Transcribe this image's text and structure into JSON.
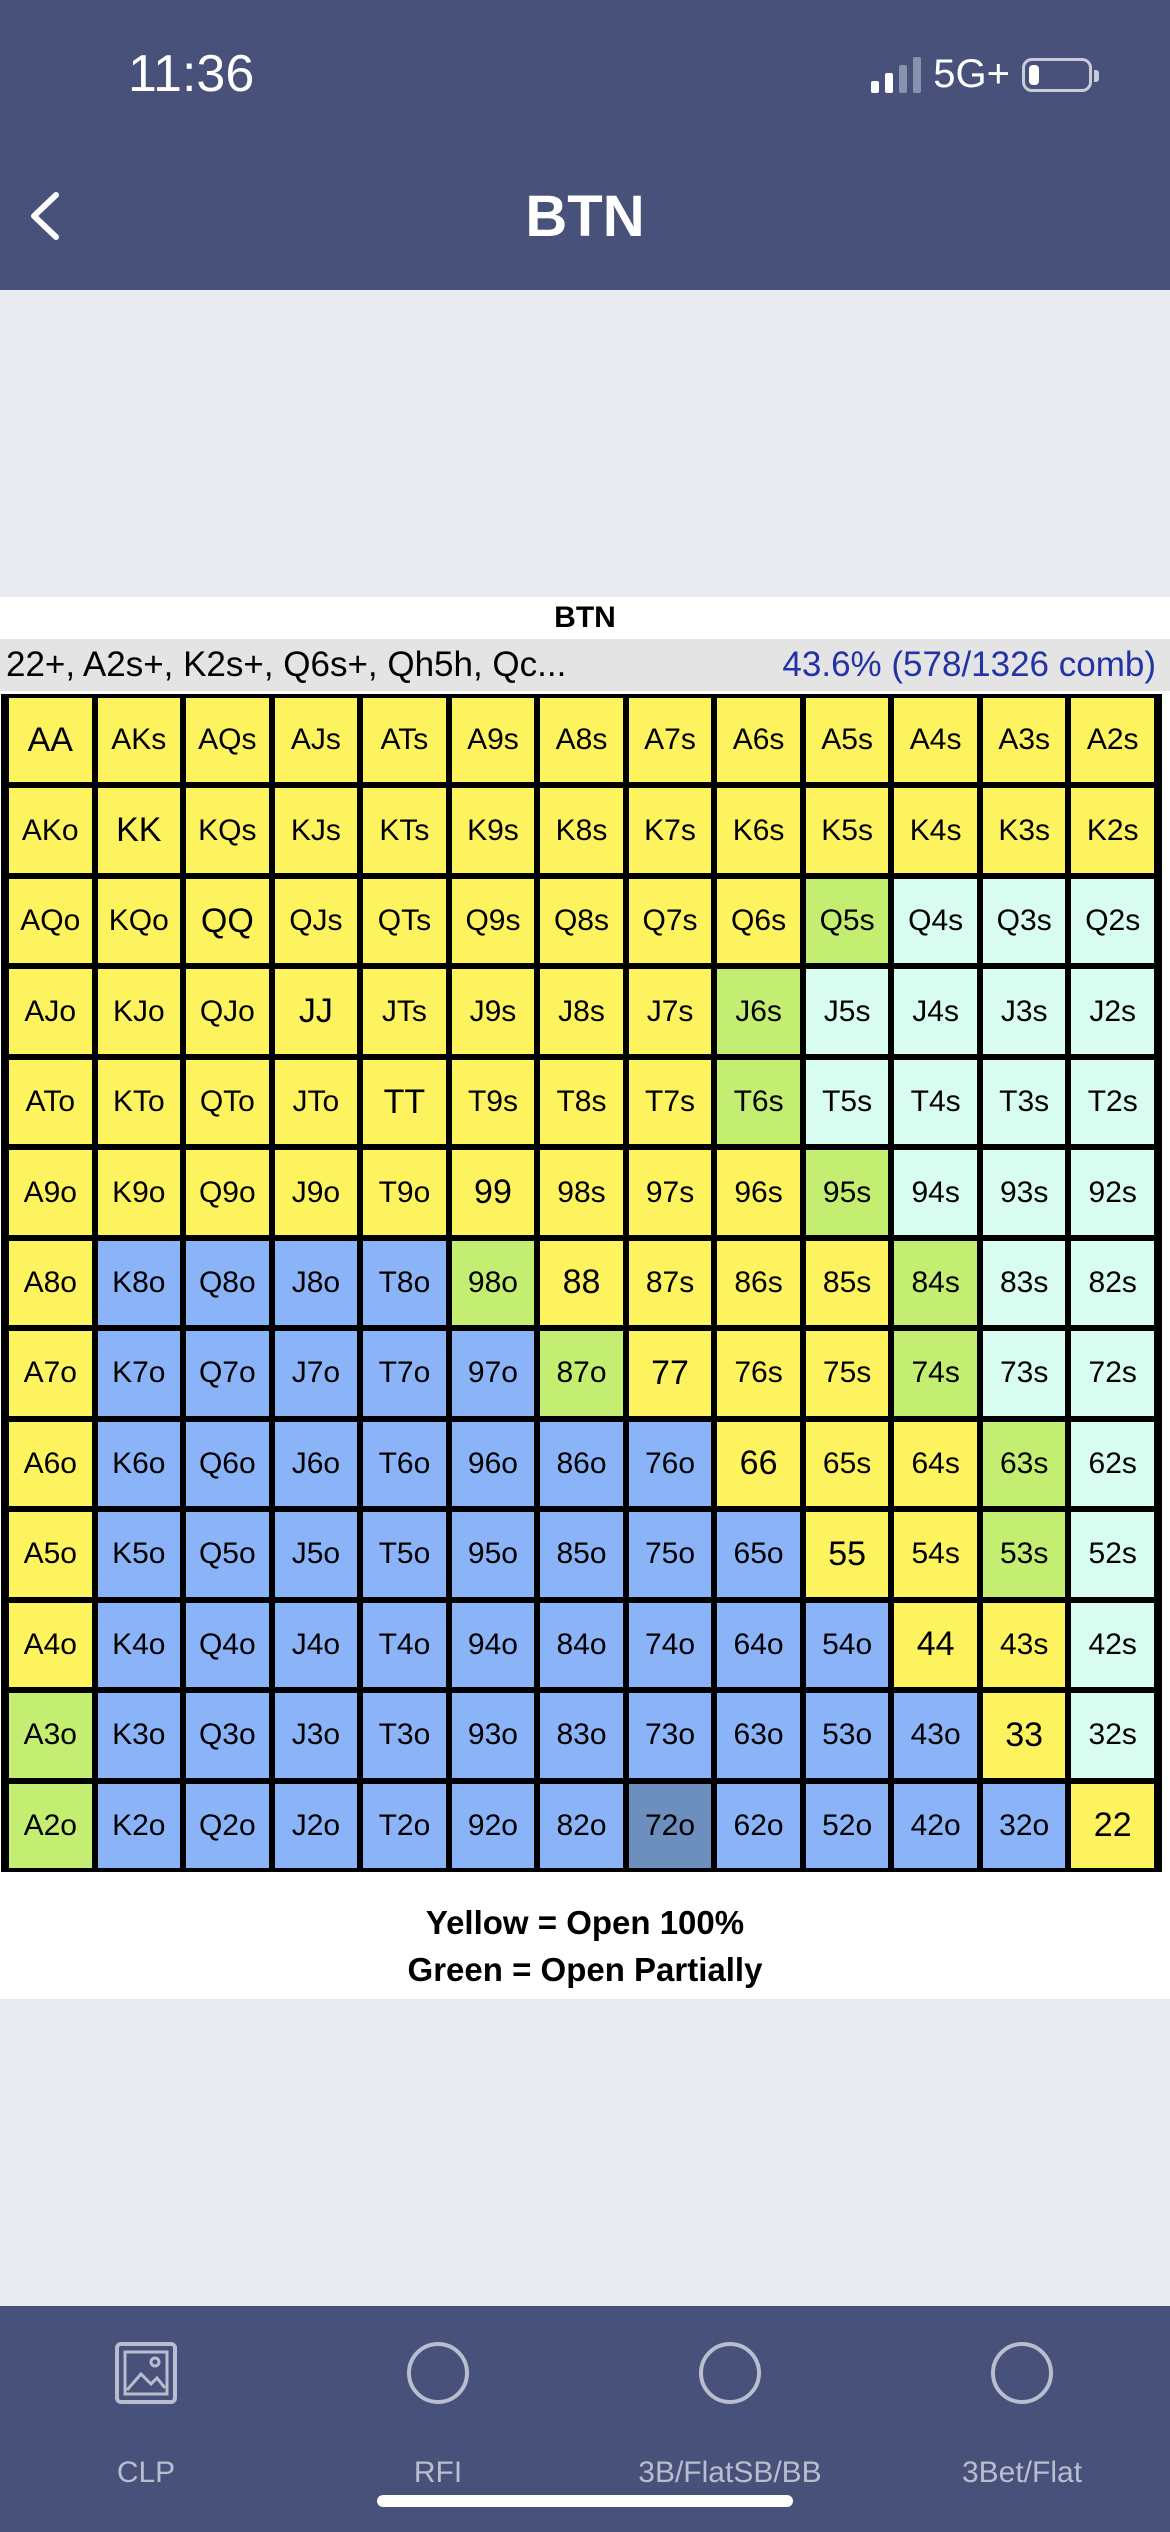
{
  "status": {
    "time": "11:36",
    "network": "5G+"
  },
  "nav": {
    "title": "BTN"
  },
  "chart": {
    "title": "BTN",
    "range_text": "22+, A2s+, K2s+, Q6s+, Qh5h, Qc...",
    "percent_text": "43.6%  (578/1326 comb)",
    "legend_line1": "Yellow = Open 100%",
    "legend_line2": "Green = Open Partially"
  },
  "colors": {
    "Y": "#fdf35f",
    "G": "#c4ee72",
    "C": "#d8fcef",
    "B": "#8ab4f7",
    "D": "#6c8fbd",
    "header": "#475179"
  },
  "grid": {
    "rows": [
      [
        "AA",
        "AKs",
        "AQs",
        "AJs",
        "ATs",
        "A9s",
        "A8s",
        "A7s",
        "A6s",
        "A5s",
        "A4s",
        "A3s",
        "A2s"
      ],
      [
        "AKo",
        "KK",
        "KQs",
        "KJs",
        "KTs",
        "K9s",
        "K8s",
        "K7s",
        "K6s",
        "K5s",
        "K4s",
        "K3s",
        "K2s"
      ],
      [
        "AQo",
        "KQo",
        "QQ",
        "QJs",
        "QTs",
        "Q9s",
        "Q8s",
        "Q7s",
        "Q6s",
        "Q5s",
        "Q4s",
        "Q3s",
        "Q2s"
      ],
      [
        "AJo",
        "KJo",
        "QJo",
        "JJ",
        "JTs",
        "J9s",
        "J8s",
        "J7s",
        "J6s",
        "J5s",
        "J4s",
        "J3s",
        "J2s"
      ],
      [
        "ATo",
        "KTo",
        "QTo",
        "JTo",
        "TT",
        "T9s",
        "T8s",
        "T7s",
        "T6s",
        "T5s",
        "T4s",
        "T3s",
        "T2s"
      ],
      [
        "A9o",
        "K9o",
        "Q9o",
        "J9o",
        "T9o",
        "99",
        "98s",
        "97s",
        "96s",
        "95s",
        "94s",
        "93s",
        "92s"
      ],
      [
        "A8o",
        "K8o",
        "Q8o",
        "J8o",
        "T8o",
        "98o",
        "88",
        "87s",
        "86s",
        "85s",
        "84s",
        "83s",
        "82s"
      ],
      [
        "A7o",
        "K7o",
        "Q7o",
        "J7o",
        "T7o",
        "97o",
        "87o",
        "77",
        "76s",
        "75s",
        "74s",
        "73s",
        "72s"
      ],
      [
        "A6o",
        "K6o",
        "Q6o",
        "J6o",
        "T6o",
        "96o",
        "86o",
        "76o",
        "66",
        "65s",
        "64s",
        "63s",
        "62s"
      ],
      [
        "A5o",
        "K5o",
        "Q5o",
        "J5o",
        "T5o",
        "95o",
        "85o",
        "75o",
        "65o",
        "55",
        "54s",
        "53s",
        "52s"
      ],
      [
        "A4o",
        "K4o",
        "Q4o",
        "J4o",
        "T4o",
        "94o",
        "84o",
        "74o",
        "64o",
        "54o",
        "44",
        "43s",
        "42s"
      ],
      [
        "A3o",
        "K3o",
        "Q3o",
        "J3o",
        "T3o",
        "93o",
        "83o",
        "73o",
        "63o",
        "53o",
        "43o",
        "33",
        "32s"
      ],
      [
        "A2o",
        "K2o",
        "Q2o",
        "J2o",
        "T2o",
        "92o",
        "82o",
        "72o",
        "62o",
        "52o",
        "42o",
        "32o",
        "22"
      ]
    ],
    "color_codes": [
      "YYYYYYYYYYYYY",
      "YYYYYYYYYYYYY",
      "YYYYYYYYYGCCC",
      "YYYYYYYYGCCCC",
      "YYYYYYYYGCCCC",
      "YYYYYYYYYGCCC",
      "YBBBBGYYYYGCC",
      "YBBBBBGYYYGCC",
      "YBBBBBBBYYYGC",
      "YBBBBBBBBYYGC",
      "YBBBBBBBBBYYC",
      "GBBBBBBBBBBYC",
      "GBBBBBBDBBBBY"
    ]
  },
  "tabs": [
    {
      "label": "CLP",
      "icon": "image-icon"
    },
    {
      "label": "RFI",
      "icon": "circle-icon"
    },
    {
      "label": "3B/FlatSB/BB",
      "icon": "circle-icon"
    },
    {
      "label": "3Bet/Flat",
      "icon": "circle-icon"
    }
  ]
}
